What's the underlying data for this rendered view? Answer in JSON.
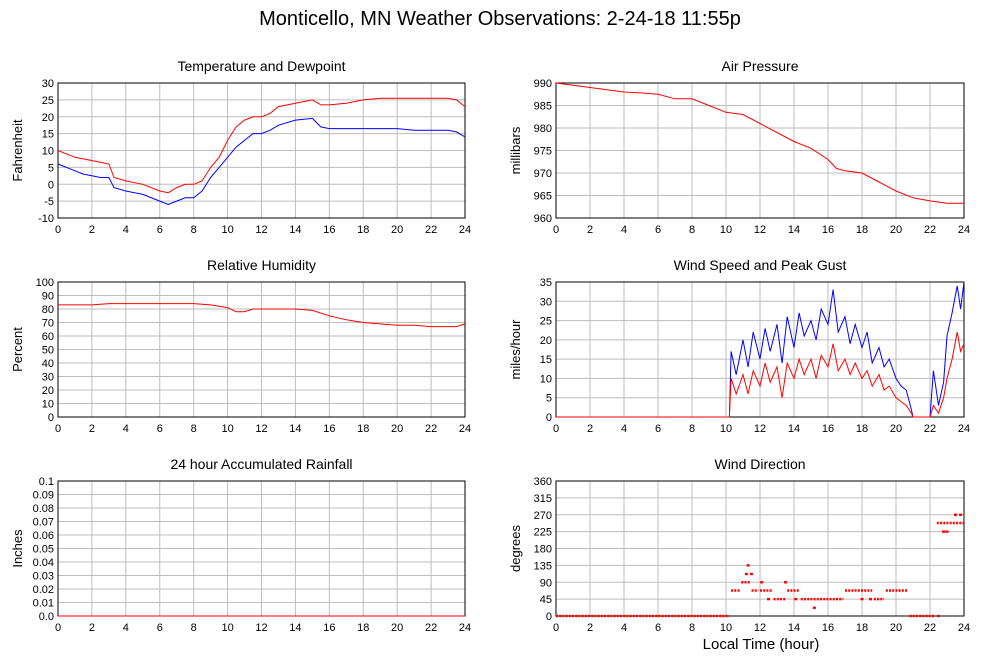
{
  "title": "Monticello, MN Weather Observations: 2-24-18 11:55p",
  "xlabel": "Local Time (hour)",
  "colors": {
    "red": "#ff0000",
    "blue": "#0000ff",
    "grid": "#bdbdbd"
  },
  "chart_data": [
    {
      "id": "temp",
      "type": "line",
      "title": "Temperature and Dewpoint",
      "ylabel": "Fahrenheit",
      "xlim": [
        0,
        24
      ],
      "ylim": [
        -10,
        30
      ],
      "xticks": [
        0,
        2,
        4,
        6,
        8,
        10,
        12,
        14,
        16,
        18,
        20,
        22,
        24
      ],
      "yticks": [
        -10,
        -5,
        0,
        5,
        10,
        15,
        20,
        25,
        30
      ],
      "grid": true,
      "series": [
        {
          "color": "red",
          "x": [
            0,
            1,
            1.5,
            2,
            2.5,
            3,
            3.3,
            4,
            5,
            6,
            6.5,
            7,
            7.5,
            8,
            8.5,
            9,
            9.5,
            10,
            10.5,
            11,
            11.5,
            12,
            12.5,
            13,
            14,
            15,
            15.5,
            16,
            17,
            18,
            19,
            20,
            21,
            22,
            23,
            23.5,
            24
          ],
          "y": [
            10,
            8,
            7.5,
            7,
            6.5,
            6,
            2,
            1,
            0,
            -2,
            -2.5,
            -1,
            0,
            0,
            1,
            5,
            8,
            13,
            17,
            19,
            20,
            20,
            21,
            23,
            24,
            25,
            23.5,
            23.5,
            24,
            25,
            25.5,
            25.5,
            25.5,
            25.5,
            25.5,
            25,
            23
          ]
        },
        {
          "color": "blue",
          "x": [
            0,
            1,
            1.5,
            2,
            2.5,
            3,
            3.3,
            4,
            5,
            6,
            6.5,
            7,
            7.5,
            8,
            8.5,
            9,
            9.5,
            10,
            10.5,
            11,
            11.5,
            12,
            12.5,
            13,
            14,
            15,
            15.5,
            16,
            17,
            18,
            19,
            20,
            21,
            22,
            23,
            23.5,
            24
          ],
          "y": [
            6,
            4,
            3,
            2.5,
            2,
            2,
            -1,
            -2,
            -3,
            -5,
            -6,
            -5,
            -4,
            -4,
            -2,
            2,
            5,
            8,
            11,
            13,
            15,
            15,
            16,
            17.5,
            19,
            19.5,
            17,
            16.5,
            16.5,
            16.5,
            16.5,
            16.5,
            16,
            16,
            16,
            15.5,
            14
          ]
        }
      ]
    },
    {
      "id": "pressure",
      "type": "line",
      "title": "Air Pressure",
      "ylabel": "millibars",
      "xlim": [
        0,
        24
      ],
      "ylim": [
        960,
        990
      ],
      "xticks": [
        0,
        2,
        4,
        6,
        8,
        10,
        12,
        14,
        16,
        18,
        20,
        22,
        24
      ],
      "yticks": [
        960,
        965,
        970,
        975,
        980,
        985,
        990
      ],
      "grid": true,
      "series": [
        {
          "color": "red",
          "x": [
            0,
            1,
            2,
            3,
            4,
            5,
            6,
            7,
            8,
            9,
            10,
            11,
            12,
            13,
            14,
            15,
            16,
            16.5,
            17,
            18,
            19,
            20,
            21,
            22,
            23,
            24
          ],
          "y": [
            990,
            989.5,
            989,
            988.5,
            988,
            987.8,
            987.5,
            986.5,
            986.5,
            985,
            983.5,
            983,
            981,
            979,
            977,
            975.5,
            973,
            971,
            970.5,
            970,
            968,
            966,
            964.5,
            963.8,
            963.3,
            963.3
          ]
        }
      ]
    },
    {
      "id": "humidity",
      "type": "line",
      "title": "Relative Humidity",
      "ylabel": "Percent",
      "xlim": [
        0,
        24
      ],
      "ylim": [
        0,
        100
      ],
      "xticks": [
        0,
        2,
        4,
        6,
        8,
        10,
        12,
        14,
        16,
        18,
        20,
        22,
        24
      ],
      "yticks": [
        0,
        10,
        20,
        30,
        40,
        50,
        60,
        70,
        80,
        90,
        100
      ],
      "grid": true,
      "series": [
        {
          "color": "red",
          "x": [
            0,
            2,
            3,
            8,
            9,
            10,
            10.5,
            11,
            11.5,
            12,
            14,
            15,
            16,
            17,
            18,
            19,
            20,
            21,
            22,
            23,
            23.5,
            24
          ],
          "y": [
            83,
            83,
            84,
            84,
            83,
            81,
            78,
            78,
            80,
            80,
            80,
            79,
            75,
            72,
            70,
            69,
            68,
            68,
            67,
            67,
            67,
            69
          ]
        }
      ]
    },
    {
      "id": "wind",
      "type": "line",
      "title": "Wind Speed and Peak Gust",
      "ylabel": "miles/hour",
      "xlim": [
        0,
        24
      ],
      "ylim": [
        0,
        35
      ],
      "xticks": [
        0,
        2,
        4,
        6,
        8,
        10,
        12,
        14,
        16,
        18,
        20,
        22,
        24
      ],
      "yticks": [
        0,
        5,
        10,
        15,
        20,
        25,
        30,
        35
      ],
      "grid": true,
      "series": [
        {
          "color": "blue",
          "x": [
            0,
            10.2,
            10.3,
            10.6,
            11,
            11.3,
            11.6,
            12,
            12.3,
            12.6,
            13,
            13.3,
            13.6,
            14,
            14.3,
            14.6,
            15,
            15.3,
            15.6,
            16,
            16.3,
            16.6,
            17,
            17.3,
            17.6,
            18,
            18.3,
            18.6,
            19,
            19.3,
            19.6,
            20,
            20.3,
            20.6,
            20.9,
            21,
            21.5,
            22,
            22.2,
            22.5,
            22.8,
            23,
            23.3,
            23.6,
            23.8,
            24
          ],
          "y": [
            0,
            0,
            17,
            11,
            20,
            13,
            22,
            15,
            23,
            17,
            24,
            14,
            26,
            18,
            27,
            21,
            25,
            20,
            28,
            24,
            33,
            22,
            26,
            19,
            24,
            18,
            22,
            14,
            18,
            13,
            15,
            10,
            8,
            7,
            2,
            0,
            0,
            0,
            12,
            3,
            9,
            21,
            27,
            34,
            28,
            35
          ]
        },
        {
          "color": "red",
          "x": [
            0,
            10.2,
            10.3,
            10.6,
            11,
            11.3,
            11.6,
            12,
            12.3,
            12.6,
            13,
            13.3,
            13.6,
            14,
            14.3,
            14.6,
            15,
            15.3,
            15.6,
            16,
            16.3,
            16.6,
            17,
            17.3,
            17.6,
            18,
            18.3,
            18.6,
            19,
            19.3,
            19.6,
            20,
            20.3,
            20.6,
            20.9,
            21,
            21.5,
            22,
            22.2,
            22.5,
            22.8,
            23,
            23.3,
            23.6,
            23.8,
            24
          ],
          "y": [
            0,
            0,
            10,
            6,
            11,
            6,
            12,
            8,
            14,
            9,
            13,
            5,
            14,
            10,
            15,
            11,
            15,
            10,
            16,
            13,
            19,
            12,
            15,
            11,
            14,
            10,
            12,
            8,
            11,
            7,
            8,
            5,
            4,
            3,
            1,
            0,
            0,
            0,
            3,
            1,
            5,
            10,
            15,
            22,
            17,
            19
          ]
        }
      ]
    },
    {
      "id": "rain",
      "type": "line",
      "title": "24 hour Accumulated Rainfall",
      "ylabel": "Inches",
      "xlim": [
        0,
        24
      ],
      "ylim": [
        0,
        0.1
      ],
      "xticks": [
        0,
        2,
        4,
        6,
        8,
        10,
        12,
        14,
        16,
        18,
        20,
        22,
        24
      ],
      "yticks": [
        0.0,
        0.01,
        0.02,
        0.03,
        0.04,
        0.05,
        0.06,
        0.07,
        0.08,
        0.09,
        0.1
      ],
      "ytick_labels": [
        "0.0",
        "0.01",
        "0.02",
        "0.03",
        "0.04",
        "0.05",
        "0.06",
        "0.07",
        "0.08",
        "0.09",
        "0.1"
      ],
      "grid": true,
      "series": [
        {
          "color": "blue",
          "x": [
            0,
            24
          ],
          "y": [
            0,
            0
          ]
        },
        {
          "color": "red",
          "x": [
            0,
            24
          ],
          "y": [
            0,
            0
          ]
        }
      ]
    },
    {
      "id": "direction",
      "type": "scatter",
      "title": "Wind Direction",
      "ylabel": "degrees",
      "xlim": [
        0,
        24
      ],
      "ylim": [
        0,
        360
      ],
      "xticks": [
        0,
        2,
        4,
        6,
        8,
        10,
        12,
        14,
        16,
        18,
        20,
        22,
        24
      ],
      "yticks": [
        0,
        45,
        90,
        135,
        180,
        225,
        270,
        315,
        360
      ],
      "grid": true,
      "series": [
        {
          "color": "red",
          "segments": [
            {
              "x0": 0,
              "x1": 10.2,
              "y": 0
            },
            {
              "x0": 10.3,
              "x1": 10.8,
              "y": 68
            },
            {
              "x0": 10.9,
              "x1": 11.4,
              "y": 90
            },
            {
              "x0": 11.5,
              "x1": 11.9,
              "y": 68
            },
            {
              "x0": 12,
              "x1": 12.7,
              "y": 68
            },
            {
              "x0": 12.8,
              "x1": 13.5,
              "y": 45
            },
            {
              "x0": 13.6,
              "x1": 14.3,
              "y": 68
            },
            {
              "x0": 14.4,
              "x1": 16.9,
              "y": 45
            },
            {
              "x0": 17,
              "x1": 18.6,
              "y": 68
            },
            {
              "x0": 18.7,
              "x1": 19.3,
              "y": 45
            },
            {
              "x0": 19.4,
              "x1": 20.7,
              "y": 68
            },
            {
              "x0": 20.8,
              "x1": 22.3,
              "y": 0
            },
            {
              "x0": 22.4,
              "x1": 24,
              "y": 248
            }
          ],
          "points": [
            {
              "x": 11.3,
              "y": 135
            },
            {
              "x": 11.2,
              "y": 112
            },
            {
              "x": 11.5,
              "y": 112
            },
            {
              "x": 12.1,
              "y": 90
            },
            {
              "x": 12.5,
              "y": 45
            },
            {
              "x": 13.5,
              "y": 90
            },
            {
              "x": 14.1,
              "y": 45
            },
            {
              "x": 15.2,
              "y": 22
            },
            {
              "x": 18,
              "y": 45
            },
            {
              "x": 18.5,
              "y": 45
            },
            {
              "x": 22.5,
              "y": 0
            },
            {
              "x": 22.8,
              "y": 225
            },
            {
              "x": 23,
              "y": 225
            },
            {
              "x": 23.5,
              "y": 270
            },
            {
              "x": 23.8,
              "y": 270
            }
          ]
        }
      ]
    }
  ]
}
